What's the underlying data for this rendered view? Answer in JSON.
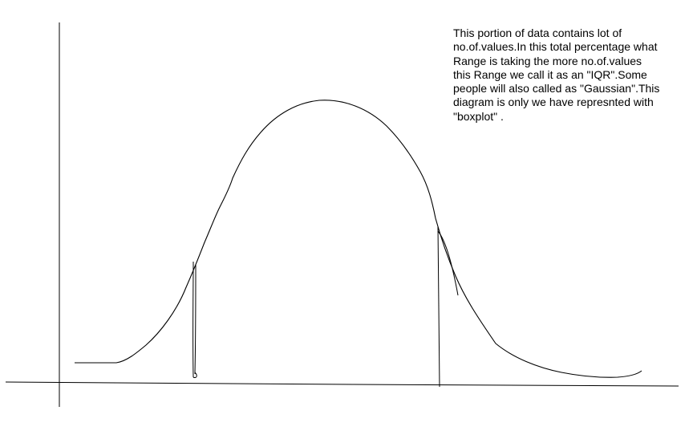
{
  "annotation": {
    "lines": [
      "This portion of data contains lot of",
      "no.of.values.In this total percentage what",
      "Range is taking the more no.of.values",
      "this Range we call it as an \"IQR\".Some",
      "people will also called as \"Gaussian\".This",
      "diagram is only we have represnted with",
      "\"boxplot\" ."
    ]
  },
  "colors": {
    "background": "#ffffff",
    "ink": "#000000"
  }
}
